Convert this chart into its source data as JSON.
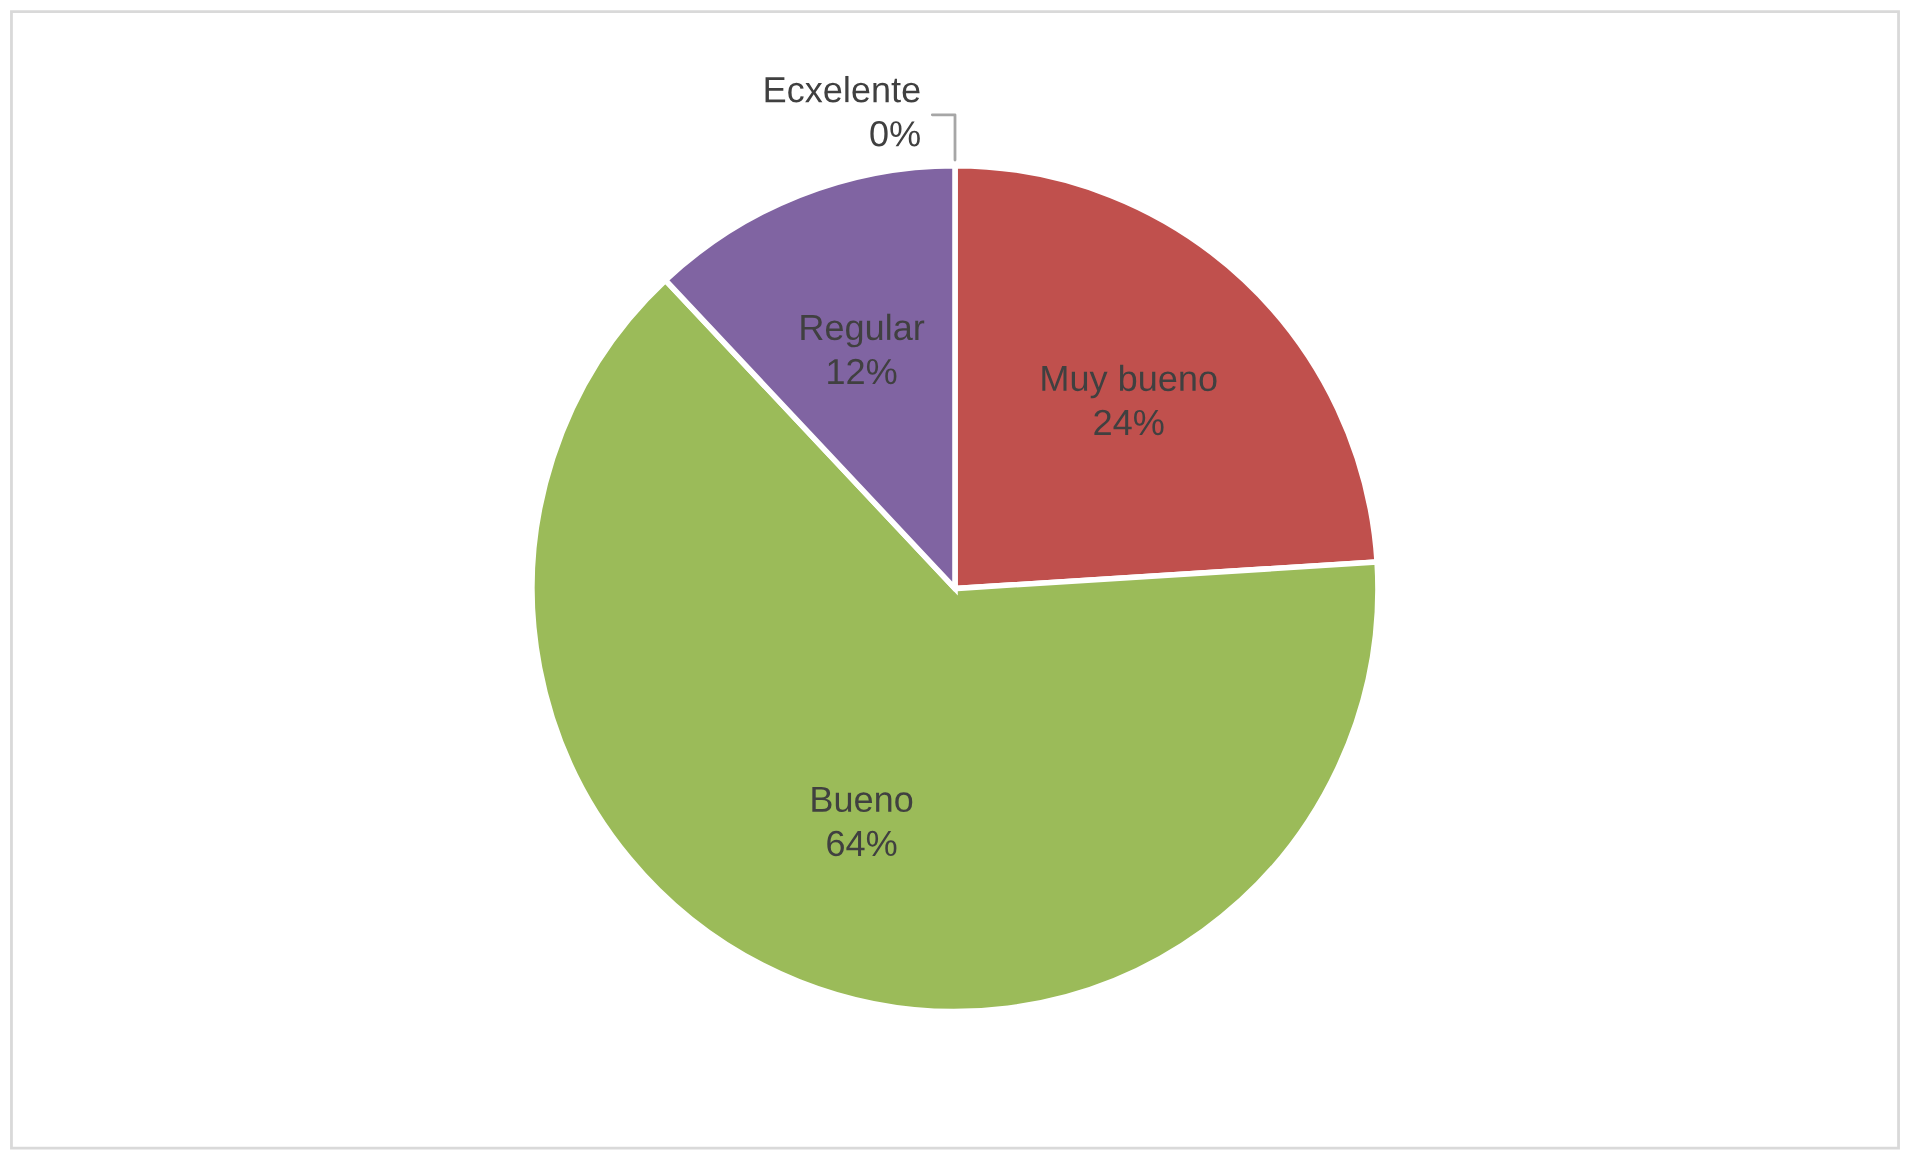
{
  "chart_data": {
    "type": "pie",
    "categories": [
      "Ecxelente",
      "Muy bueno",
      "Bueno",
      "Regular"
    ],
    "values": [
      0,
      24,
      64,
      12
    ],
    "value_labels": [
      "0%",
      "24%",
      "64%",
      "12%"
    ],
    "colors": [
      "#4f81bd",
      "#c0504d",
      "#9bbb59",
      "#8064a2"
    ],
    "legend": false
  }
}
